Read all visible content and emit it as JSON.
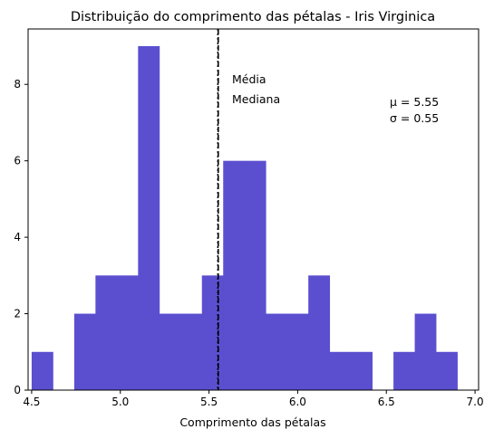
{
  "chart_data": {
    "type": "bar",
    "title": "Distribuição do comprimento das pétalas - Iris Virginica",
    "xlabel": "Comprimento das pétalas",
    "ylabel": "",
    "xlim": [
      4.48,
      7.02
    ],
    "ylim": [
      0,
      9.45
    ],
    "xticks": [
      "4.5",
      "5.0",
      "5.5",
      "6.0",
      "6.5",
      "7.0"
    ],
    "yticks": [
      "0",
      "2",
      "4",
      "6",
      "8"
    ],
    "bins": [
      {
        "x0": 4.5,
        "x1": 4.62,
        "count": 1
      },
      {
        "x0": 4.62,
        "x1": 4.74,
        "count": 0
      },
      {
        "x0": 4.74,
        "x1": 4.86,
        "count": 2
      },
      {
        "x0": 4.86,
        "x1": 4.98,
        "count": 3
      },
      {
        "x0": 4.98,
        "x1": 5.1,
        "count": 3
      },
      {
        "x0": 5.1,
        "x1": 5.22,
        "count": 9
      },
      {
        "x0": 5.22,
        "x1": 5.34,
        "count": 2
      },
      {
        "x0": 5.34,
        "x1": 5.46,
        "count": 2
      },
      {
        "x0": 5.46,
        "x1": 5.58,
        "count": 3
      },
      {
        "x0": 5.58,
        "x1": 5.7,
        "count": 6
      },
      {
        "x0": 5.7,
        "x1": 5.82,
        "count": 6
      },
      {
        "x0": 5.82,
        "x1": 5.94,
        "count": 2
      },
      {
        "x0": 5.94,
        "x1": 6.06,
        "count": 2
      },
      {
        "x0": 6.06,
        "x1": 6.18,
        "count": 3
      },
      {
        "x0": 6.18,
        "x1": 6.3,
        "count": 1
      },
      {
        "x0": 6.3,
        "x1": 6.42,
        "count": 1
      },
      {
        "x0": 6.42,
        "x1": 6.54,
        "count": 0
      },
      {
        "x0": 6.54,
        "x1": 6.66,
        "count": 1
      },
      {
        "x0": 6.66,
        "x1": 6.78,
        "count": 2
      },
      {
        "x0": 6.78,
        "x1": 6.9,
        "count": 1
      }
    ],
    "bar_color": "#5b4fcf",
    "mean_line": {
      "x": 5.552,
      "label": "Média",
      "color": "#000000"
    },
    "median_line": {
      "x": 5.55,
      "label": "Mediana",
      "color": "#000000"
    },
    "stats_text": {
      "mu": "μ = 5.55",
      "sigma": "σ = 0.55"
    },
    "legend": "none",
    "grid": false
  }
}
